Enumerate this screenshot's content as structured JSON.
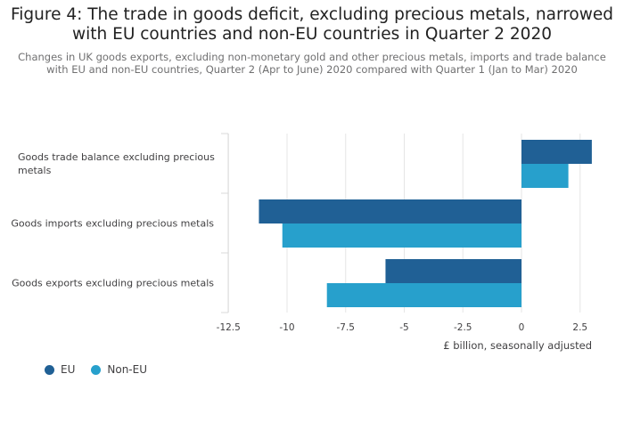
{
  "title_lines": [
    "Figure 4: The trade in goods deficit, excluding precious metals, narrowed",
    "with EU countries and non-EU countries in Quarter 2 2020"
  ],
  "subtitle_lines": [
    "Changes in UK goods exports, excluding non-monetary gold and other precious metals, imports and trade balance",
    "with EU and non-EU countries, Quarter 2 (Apr to June) 2020 compared with Quarter 1 (Jan to Mar) 2020"
  ],
  "chart_data": {
    "type": "bar",
    "orientation": "horizontal",
    "categories": [
      "Goods trade balance excluding precious metals",
      "Goods imports excluding precious metals",
      "Goods exports excluding precious metals"
    ],
    "category_label_lines": [
      [
        "Goods trade balance excluding precious",
        "metals"
      ],
      [
        "Goods imports excluding precious metals"
      ],
      [
        "Goods exports excluding precious metals"
      ]
    ],
    "series": [
      {
        "name": "EU",
        "color": "#206095",
        "values": [
          3.0,
          -11.2,
          -5.8
        ]
      },
      {
        "name": "Non-EU",
        "color": "#27a0cc",
        "values": [
          2.0,
          -10.2,
          -8.3
        ]
      }
    ],
    "xlim": [
      -12.5,
      3.0
    ],
    "xticks": [
      -12.5,
      -10,
      -7.5,
      -5,
      -2.5,
      0,
      2.5
    ],
    "xtick_labels": [
      "-12.5",
      "-10",
      "-7.5",
      "-5",
      "-2.5",
      "0",
      "2.5"
    ],
    "xlabel": "£ billion, seasonally adjusted",
    "grid": true,
    "legend_position": "bottom-left"
  }
}
